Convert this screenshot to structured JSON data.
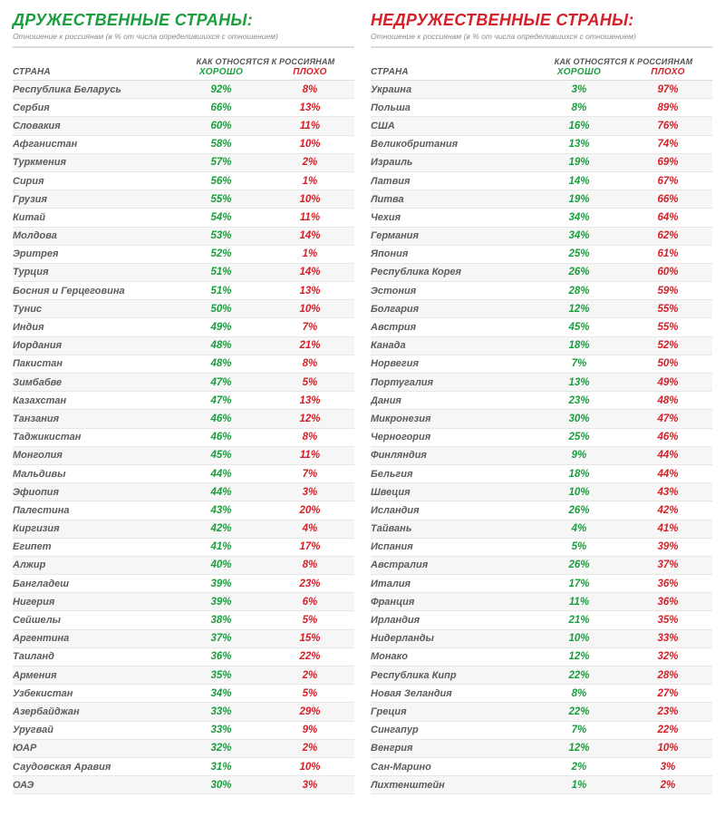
{
  "colors": {
    "good_green": "#1a9e3e",
    "bad_red": "#d61f26",
    "gray_text": "#5c5c5c",
    "subtitle_gray": "#8a8a8a",
    "row_stripe": "#f6f6f6",
    "row_border": "#e6e6e6",
    "header_border": "#dcdcdc",
    "background": "#ffffff"
  },
  "typography": {
    "main_title_size_pt": 18,
    "main_title_weight": 900,
    "row_font_size_pt": 11,
    "header_font_size_pt": 10,
    "subtitle_size_pt": 8.5,
    "italic": true
  },
  "shared": {
    "country_header": "СТРАНА",
    "metric_header_top": "КАК ОТНОСЯТСЯ К РОССИЯНАМ",
    "metric_good": "ХОРОШО",
    "metric_bad": "ПЛОХО",
    "subtitle": "Отношение к россиянам (в % от числа определившихся с отношением)"
  },
  "left": {
    "title": "ДРУЖЕСТВЕННЫЕ СТРАНЫ:",
    "title_color": "#1a9e3e",
    "rows": [
      {
        "name": "Республика Беларусь",
        "good": "92%",
        "bad": "8%"
      },
      {
        "name": "Сербия",
        "good": "66%",
        "bad": "13%"
      },
      {
        "name": "Словакия",
        "good": "60%",
        "bad": "11%"
      },
      {
        "name": "Афганистан",
        "good": "58%",
        "bad": "10%"
      },
      {
        "name": "Туркмения",
        "good": "57%",
        "bad": "2%"
      },
      {
        "name": "Сирия",
        "good": "56%",
        "bad": "1%"
      },
      {
        "name": "Грузия",
        "good": "55%",
        "bad": "10%"
      },
      {
        "name": "Китай",
        "good": "54%",
        "bad": "11%"
      },
      {
        "name": "Молдова",
        "good": "53%",
        "bad": "14%"
      },
      {
        "name": "Эритрея",
        "good": "52%",
        "bad": "1%"
      },
      {
        "name": "Турция",
        "good": "51%",
        "bad": "14%"
      },
      {
        "name": "Босния и Герцеговина",
        "good": "51%",
        "bad": "13%"
      },
      {
        "name": "Тунис",
        "good": "50%",
        "bad": "10%"
      },
      {
        "name": "Индия",
        "good": "49%",
        "bad": "7%"
      },
      {
        "name": "Иордания",
        "good": "48%",
        "bad": "21%"
      },
      {
        "name": "Пакистан",
        "good": "48%",
        "bad": "8%"
      },
      {
        "name": "Зимбабве",
        "good": "47%",
        "bad": "5%"
      },
      {
        "name": "Казахстан",
        "good": "47%",
        "bad": "13%"
      },
      {
        "name": "Танзания",
        "good": "46%",
        "bad": "12%"
      },
      {
        "name": "Таджикистан",
        "good": "46%",
        "bad": "8%"
      },
      {
        "name": "Монголия",
        "good": "45%",
        "bad": "11%"
      },
      {
        "name": "Мальдивы",
        "good": "44%",
        "bad": "7%"
      },
      {
        "name": "Эфиопия",
        "good": "44%",
        "bad": "3%"
      },
      {
        "name": "Палестина",
        "good": "43%",
        "bad": "20%"
      },
      {
        "name": "Киргизия",
        "good": "42%",
        "bad": "4%"
      },
      {
        "name": "Египет",
        "good": "41%",
        "bad": "17%"
      },
      {
        "name": "Алжир",
        "good": "40%",
        "bad": "8%"
      },
      {
        "name": "Бангладеш",
        "good": "39%",
        "bad": "23%"
      },
      {
        "name": "Нигерия",
        "good": "39%",
        "bad": "6%"
      },
      {
        "name": "Сейшелы",
        "good": "38%",
        "bad": "5%"
      },
      {
        "name": "Аргентина",
        "good": "37%",
        "bad": "15%"
      },
      {
        "name": "Таиланд",
        "good": "36%",
        "bad": "22%"
      },
      {
        "name": "Армения",
        "good": "35%",
        "bad": "2%"
      },
      {
        "name": "Узбекистан",
        "good": "34%",
        "bad": "5%"
      },
      {
        "name": "Азербайджан",
        "good": "33%",
        "bad": "29%"
      },
      {
        "name": "Уругвай",
        "good": "33%",
        "bad": "9%"
      },
      {
        "name": "ЮАР",
        "good": "32%",
        "bad": "2%"
      },
      {
        "name": "Саудовская Аравия",
        "good": "31%",
        "bad": "10%"
      },
      {
        "name": "ОАЭ",
        "good": "30%",
        "bad": "3%"
      }
    ]
  },
  "right": {
    "title": "НЕДРУЖЕСТВЕННЫЕ СТРАНЫ:",
    "title_color": "#d61f26",
    "rows": [
      {
        "name": "Украина",
        "good": "3%",
        "bad": "97%"
      },
      {
        "name": "Польша",
        "good": "8%",
        "bad": "89%"
      },
      {
        "name": "США",
        "good": "16%",
        "bad": "76%"
      },
      {
        "name": "Великобритания",
        "good": "13%",
        "bad": "74%"
      },
      {
        "name": "Израиль",
        "good": "19%",
        "bad": "69%"
      },
      {
        "name": "Латвия",
        "good": "14%",
        "bad": "67%"
      },
      {
        "name": "Литва",
        "good": "19%",
        "bad": "66%"
      },
      {
        "name": "Чехия",
        "good": "34%",
        "bad": "64%"
      },
      {
        "name": "Германия",
        "good": "34%",
        "bad": "62%"
      },
      {
        "name": "Япония",
        "good": "25%",
        "bad": "61%"
      },
      {
        "name": "Республика Корея",
        "good": "26%",
        "bad": "60%"
      },
      {
        "name": "Эстония",
        "good": "28%",
        "bad": "59%"
      },
      {
        "name": "Болгария",
        "good": "12%",
        "bad": "55%"
      },
      {
        "name": "Австрия",
        "good": "45%",
        "bad": "55%"
      },
      {
        "name": "Канада",
        "good": "18%",
        "bad": "52%"
      },
      {
        "name": "Норвегия",
        "good": "7%",
        "bad": "50%"
      },
      {
        "name": "Португалия",
        "good": "13%",
        "bad": "49%"
      },
      {
        "name": "Дания",
        "good": "23%",
        "bad": "48%"
      },
      {
        "name": "Микронезия",
        "good": "30%",
        "bad": "47%"
      },
      {
        "name": "Черногория",
        "good": "25%",
        "bad": "46%"
      },
      {
        "name": "Финляндия",
        "good": "9%",
        "bad": "44%"
      },
      {
        "name": "Бельгия",
        "good": "18%",
        "bad": "44%"
      },
      {
        "name": "Швеция",
        "good": "10%",
        "bad": "43%"
      },
      {
        "name": "Исландия",
        "good": "26%",
        "bad": "42%"
      },
      {
        "name": "Тайвань",
        "good": "4%",
        "bad": "41%"
      },
      {
        "name": "Испания",
        "good": "5%",
        "bad": "39%"
      },
      {
        "name": "Австралия",
        "good": "26%",
        "bad": "37%"
      },
      {
        "name": "Италия",
        "good": "17%",
        "bad": "36%"
      },
      {
        "name": "Франция",
        "good": "11%",
        "bad": "36%"
      },
      {
        "name": "Ирландия",
        "good": "21%",
        "bad": "35%"
      },
      {
        "name": "Нидерланды",
        "good": "10%",
        "bad": "33%"
      },
      {
        "name": "Монако",
        "good": "12%",
        "bad": "32%"
      },
      {
        "name": "Республика Кипр",
        "good": "22%",
        "bad": "28%"
      },
      {
        "name": "Новая Зеландия",
        "good": "8%",
        "bad": "27%"
      },
      {
        "name": "Греция",
        "good": "22%",
        "bad": "23%"
      },
      {
        "name": "Сингапур",
        "good": "7%",
        "bad": "22%"
      },
      {
        "name": "Венгрия",
        "good": "12%",
        "bad": "10%"
      },
      {
        "name": "Сан-Марино",
        "good": "2%",
        "bad": "3%"
      },
      {
        "name": "Лихтенштейн",
        "good": "1%",
        "bad": "2%"
      }
    ]
  }
}
